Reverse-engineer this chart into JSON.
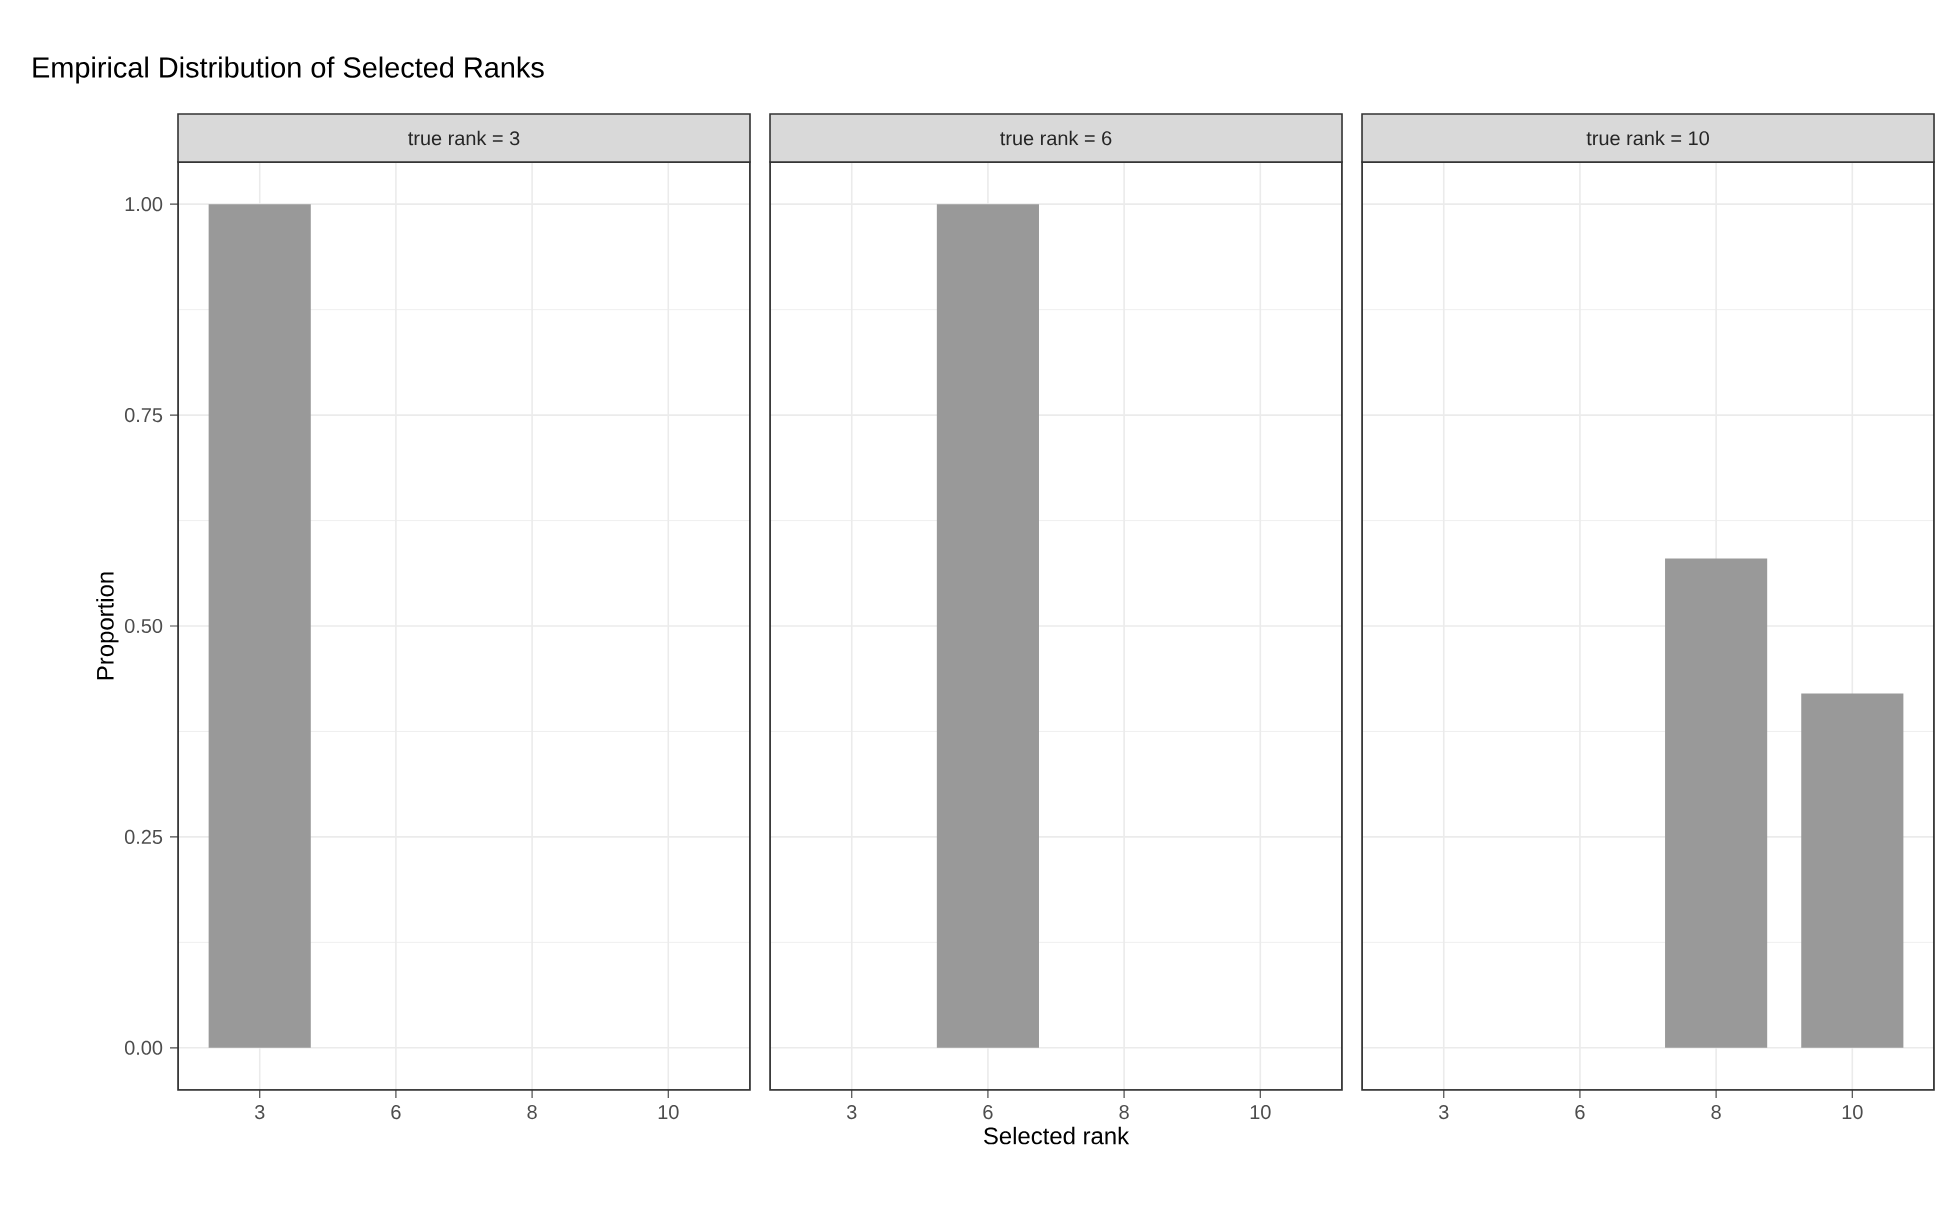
{
  "chart_data": [
    {
      "type": "bar",
      "title": "Empirical Distribution of Selected Ranks",
      "subtitle": "true rank = 3",
      "ylabel": "Proportion",
      "categories": [
        "3",
        "6",
        "8",
        "10"
      ],
      "values": [
        1,
        null,
        null,
        null
      ],
      "color": "#999999",
      "ylim": [
        -0.05,
        1.05
      ],
      "yticks": [
        {
          "value": 0,
          "label": "0.00"
        },
        {
          "value": 0.25,
          "label": "0.25"
        },
        {
          "value": 0.5,
          "label": "0.50"
        },
        {
          "value": 0.75,
          "label": "0.75"
        },
        {
          "value": 1,
          "label": "1.00"
        }
      ],
      "grid": true
    },
    {
      "type": "bar",
      "subtitle": "true rank = 6",
      "xlabel": "Selected rank",
      "categories": [
        "3",
        "6",
        "8",
        "10"
      ],
      "values": [
        null,
        1,
        null,
        null
      ],
      "color": "#999999",
      "ylim": [
        -0.05,
        1.05
      ],
      "yticks": [
        0,
        0.25,
        0.5,
        0.75,
        1
      ],
      "grid": true,
      "tick_labels": "x"
    },
    {
      "type": "bar",
      "subtitle": "true rank = 10",
      "categories": [
        "3",
        "6",
        "8",
        "10"
      ],
      "values": [
        null,
        null,
        0.58,
        0.42
      ],
      "color": "#999999",
      "ylim": [
        -0.05,
        1.05
      ],
      "yticks": [
        0,
        0.25,
        0.5,
        0.75,
        1
      ],
      "grid": true,
      "tick_labels": "x"
    }
  ]
}
